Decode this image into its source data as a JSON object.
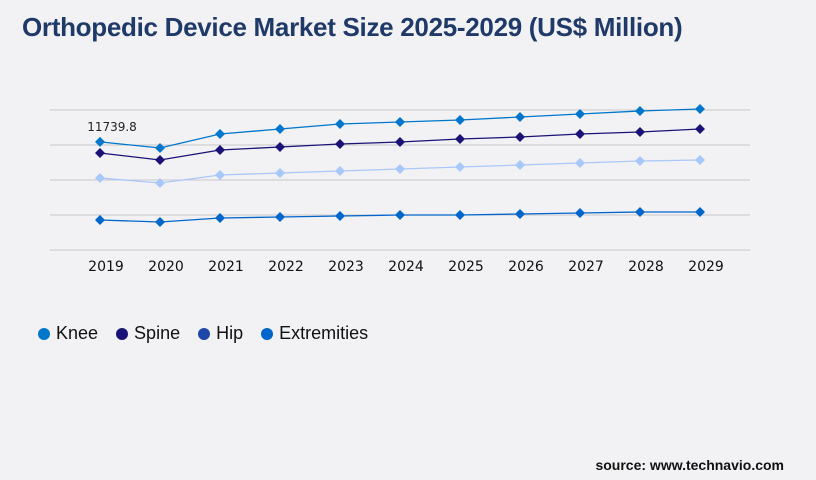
{
  "title": "Orthopedic Device Market Size 2025-2029 (US$ Million)",
  "source": "source: www.technavio.com",
  "chart_data": {
    "type": "line",
    "title": "Orthopedic Device Market Size 2025-2029 (US$ Million)",
    "categories": [
      "2019",
      "2020",
      "2021",
      "2022",
      "2023",
      "2024",
      "2025",
      "2026",
      "2027",
      "2028",
      "2029"
    ],
    "ylim": [
      0,
      15200
    ],
    "grid": true,
    "legend": "bottom-left",
    "annotations": [
      {
        "series": "Knee",
        "x": "2019",
        "label": "11739.8"
      }
    ],
    "series": [
      {
        "name": "Knee",
        "color": "#0077cc",
        "values": [
          11739.8,
          11074,
          12594,
          13137,
          13680,
          13897,
          14114,
          14440,
          14766,
          15091,
          15309
        ]
      },
      {
        "name": "Spine",
        "color": "#1a1277",
        "values": [
          10531,
          9771,
          10857,
          11183,
          11509,
          11726,
          12051,
          12269,
          12594,
          12811,
          13137
        ]
      },
      {
        "name": "Hip",
        "color": "#a8c8fa",
        "legend_color": "#1d47a8",
        "values": [
          7817,
          7274,
          8143,
          8360,
          8577,
          8794,
          9011,
          9229,
          9446,
          9663,
          9771
        ]
      },
      {
        "name": "Extremities",
        "color": "#0066cc",
        "values": [
          3257,
          3040,
          3474,
          3583,
          3691,
          3800,
          3800,
          3909,
          4017,
          4126,
          4126
        ]
      }
    ]
  }
}
